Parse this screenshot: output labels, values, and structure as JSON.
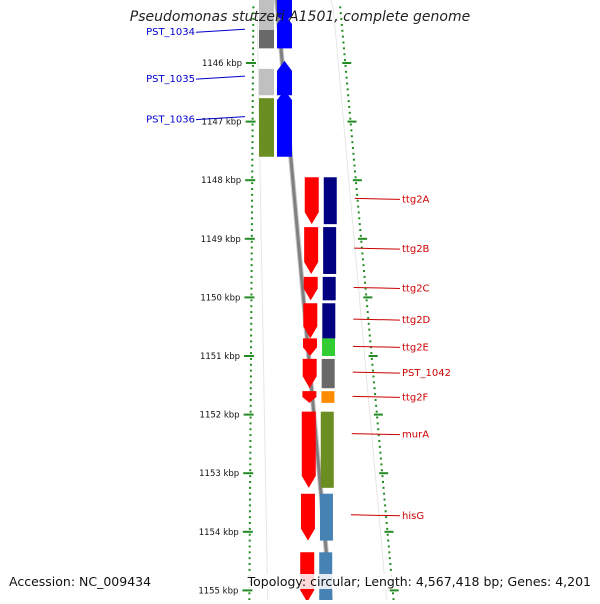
{
  "title": "Pseudomonas stutzeri A1501, complete genome",
  "footer": {
    "accession": "Accession: NC_009434",
    "summary": "Topology: circular; Length: 4,567,418 bp; Genes: 4,201"
  },
  "colors": {
    "background": "#ffffff",
    "tick": "#228B22",
    "left_label": "#0000cc",
    "right_label": "#cc0000",
    "backbone": "#808080"
  },
  "ticks": [
    {
      "label": "1146 kbp"
    },
    {
      "label": "1147 kbp"
    },
    {
      "label": "1148 kbp"
    },
    {
      "label": "1149 kbp"
    },
    {
      "label": "1150 kbp"
    },
    {
      "label": "1151 kbp"
    },
    {
      "label": "1152 kbp"
    },
    {
      "label": "1153 kbp"
    },
    {
      "label": "1154 kbp"
    },
    {
      "label": "1155 kbp"
    }
  ],
  "left_genes": [
    {
      "label": "PST_1034",
      "start_kbp": 1145.3,
      "end_kbp": 1145.75,
      "cog_color": "#696969"
    },
    {
      "label": "PST_1035",
      "start_kbp": 1146.1,
      "end_kbp": 1146.55,
      "cog_color": "#c0c0c0"
    },
    {
      "label": "PST_1036",
      "start_kbp": 1146.6,
      "end_kbp": 1147.6,
      "cog_color": "#6b8e23"
    }
  ],
  "right_genes": [
    {
      "label": "ttg2A",
      "start_kbp": 1147.95,
      "end_kbp": 1148.75,
      "cog_color": "#000080"
    },
    {
      "label": "ttg2B",
      "start_kbp": 1148.8,
      "end_kbp": 1149.6,
      "cog_color": "#000080"
    },
    {
      "label": "ttg2C",
      "start_kbp": 1149.65,
      "end_kbp": 1150.05,
      "cog_color": "#000080"
    },
    {
      "label": "ttg2D",
      "start_kbp": 1150.1,
      "end_kbp": 1150.7,
      "cog_color": "#000080"
    },
    {
      "label": "ttg2E",
      "start_kbp": 1150.7,
      "end_kbp": 1151.0,
      "cog_color": "#32cd32"
    },
    {
      "label": "PST_1042",
      "start_kbp": 1151.05,
      "end_kbp": 1151.55,
      "cog_color": "#696969"
    },
    {
      "label": "ttg2F",
      "start_kbp": 1151.6,
      "end_kbp": 1151.8,
      "cog_color": "#ff8c00"
    },
    {
      "label": "murA",
      "start_kbp": 1151.95,
      "end_kbp": 1153.25,
      "cog_color": "#6b8e23"
    },
    {
      "label": "hisG",
      "start_kbp": 1153.35,
      "end_kbp": 1154.15,
      "cog_color": "#4682b4"
    },
    {
      "label": "",
      "start_kbp": 1154.35,
      "end_kbp": 1155.2,
      "cog_color": "#4682b4"
    }
  ]
}
